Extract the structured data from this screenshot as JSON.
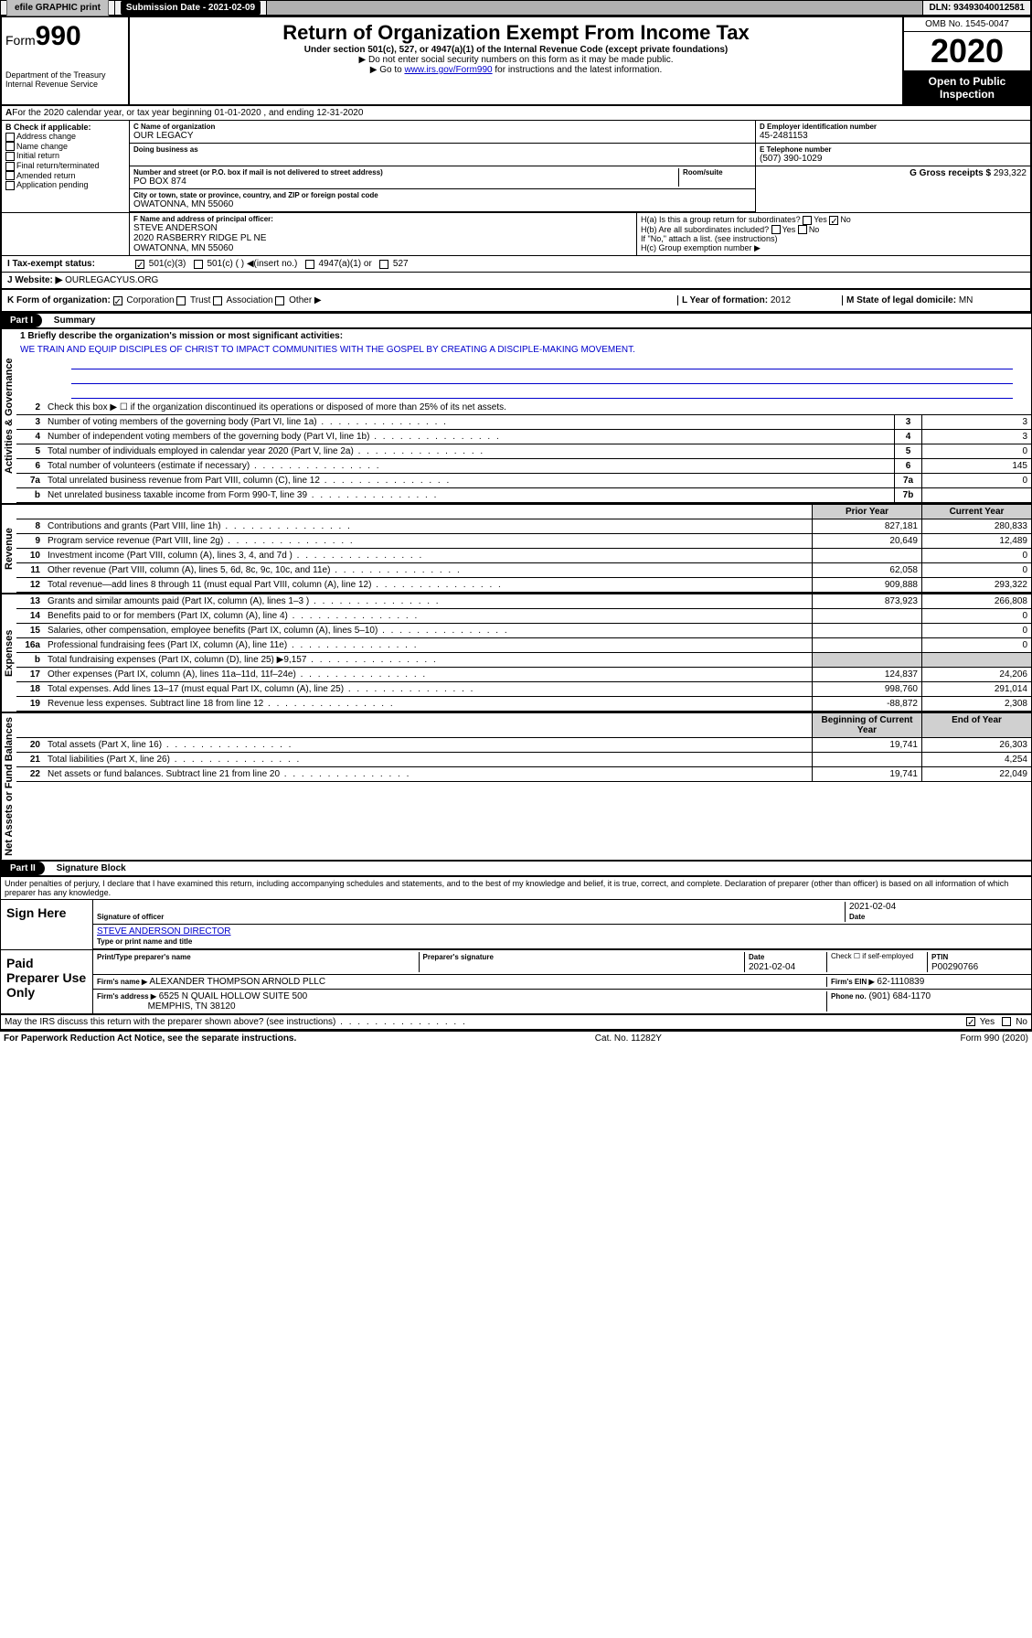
{
  "topbar": {
    "efile": "efile GRAPHIC print",
    "subdate_label": "Submission Date - 2021-02-09",
    "dln": "DLN: 93493040012581"
  },
  "header": {
    "form": "Form",
    "form_num": "990",
    "dept1": "Department of the Treasury",
    "dept2": "Internal Revenue Service",
    "title": "Return of Organization Exempt From Income Tax",
    "sub1": "Under section 501(c), 527, or 4947(a)(1) of the Internal Revenue Code (except private foundations)",
    "sub2": "▶ Do not enter social security numbers on this form as it may be made public.",
    "sub3a": "▶ Go to ",
    "sub3_link": "www.irs.gov/Form990",
    "sub3b": " for instructions and the latest information.",
    "omb": "OMB No. 1545-0047",
    "year": "2020",
    "open": "Open to Public Inspection"
  },
  "A": {
    "text": "For the 2020 calendar year, or tax year beginning 01-01-2020   , and ending 12-31-2020"
  },
  "B": {
    "label": "B Check if applicable:",
    "opts": [
      "Address change",
      "Name change",
      "Initial return",
      "Final return/terminated",
      "Amended return",
      "Application pending"
    ]
  },
  "C": {
    "name_label": "C Name of organization",
    "name": "OUR LEGACY",
    "dba_label": "Doing business as",
    "street_label": "Number and street (or P.O. box if mail is not delivered to street address)",
    "room_label": "Room/suite",
    "street": "PO BOX 874",
    "city_label": "City or town, state or province, country, and ZIP or foreign postal code",
    "city": "OWATONNA, MN  55060"
  },
  "D": {
    "label": "D Employer identification number",
    "val": "45-2481153"
  },
  "E": {
    "label": "E Telephone number",
    "val": "(507) 390-1029"
  },
  "G": {
    "label": "G Gross receipts $",
    "val": "293,322"
  },
  "F": {
    "label": "F  Name and address of principal officer:",
    "name": "STEVE ANDERSON",
    "addr1": "2020 RASBERRY RIDGE PL NE",
    "addr2": "OWATONNA, MN  55060"
  },
  "H": {
    "a": "H(a)  Is this a group return for subordinates?",
    "b": "H(b)  Are all subordinates included?",
    "b_note": "If \"No,\" attach a list. (see instructions)",
    "c": "H(c)  Group exemption number ▶",
    "yes": "Yes",
    "no": "No"
  },
  "I": {
    "label": "I  Tax-exempt status:",
    "o1": "501(c)(3)",
    "o2": "501(c) (  ) ◀(insert no.)",
    "o3": "4947(a)(1) or",
    "o4": "527"
  },
  "J": {
    "label": "J   Website: ▶",
    "val": "OURLEGACYUS.ORG"
  },
  "K": {
    "label": "K Form of organization:",
    "o1": "Corporation",
    "o2": "Trust",
    "o3": "Association",
    "o4": "Other ▶"
  },
  "L": {
    "label": "L Year of formation:",
    "val": "2012"
  },
  "M": {
    "label": "M State of legal domicile:",
    "val": "MN"
  },
  "part1": {
    "hdr": "Part I",
    "title": "Summary"
  },
  "summary": {
    "q1_label": "1  Briefly describe the organization's mission or most significant activities:",
    "q1_text": "WE TRAIN AND EQUIP DISCIPLES OF CHRIST TO IMPACT COMMUNITIES WITH THE GOSPEL BY CREATING A DISCIPLE-MAKING MOVEMENT.",
    "q2": "Check this box ▶ ☐  if the organization discontinued its operations or disposed of more than 25% of its net assets.",
    "rows_gov": [
      {
        "n": "3",
        "t": "Number of voting members of the governing body (Part VI, line 1a)",
        "box": "3",
        "v": "3"
      },
      {
        "n": "4",
        "t": "Number of independent voting members of the governing body (Part VI, line 1b)",
        "box": "4",
        "v": "3"
      },
      {
        "n": "5",
        "t": "Total number of individuals employed in calendar year 2020 (Part V, line 2a)",
        "box": "5",
        "v": "0"
      },
      {
        "n": "6",
        "t": "Total number of volunteers (estimate if necessary)",
        "box": "6",
        "v": "145"
      },
      {
        "n": "7a",
        "t": "Total unrelated business revenue from Part VIII, column (C), line 12",
        "box": "7a",
        "v": "0"
      },
      {
        "n": "b",
        "t": "Net unrelated business taxable income from Form 990-T, line 39",
        "box": "7b",
        "v": ""
      }
    ],
    "col_prior": "Prior Year",
    "col_current": "Current Year",
    "rows_rev": [
      {
        "n": "8",
        "t": "Contributions and grants (Part VIII, line 1h)",
        "p": "827,181",
        "c": "280,833"
      },
      {
        "n": "9",
        "t": "Program service revenue (Part VIII, line 2g)",
        "p": "20,649",
        "c": "12,489"
      },
      {
        "n": "10",
        "t": "Investment income (Part VIII, column (A), lines 3, 4, and 7d )",
        "p": "",
        "c": "0"
      },
      {
        "n": "11",
        "t": "Other revenue (Part VIII, column (A), lines 5, 6d, 8c, 9c, 10c, and 11e)",
        "p": "62,058",
        "c": "0"
      },
      {
        "n": "12",
        "t": "Total revenue—add lines 8 through 11 (must equal Part VIII, column (A), line 12)",
        "p": "909,888",
        "c": "293,322"
      }
    ],
    "rows_exp": [
      {
        "n": "13",
        "t": "Grants and similar amounts paid (Part IX, column (A), lines 1–3 )",
        "p": "873,923",
        "c": "266,808"
      },
      {
        "n": "14",
        "t": "Benefits paid to or for members (Part IX, column (A), line 4)",
        "p": "",
        "c": "0"
      },
      {
        "n": "15",
        "t": "Salaries, other compensation, employee benefits (Part IX, column (A), lines 5–10)",
        "p": "",
        "c": "0"
      },
      {
        "n": "16a",
        "t": "Professional fundraising fees (Part IX, column (A), line 11e)",
        "p": "",
        "c": "0"
      },
      {
        "n": "b",
        "t": "Total fundraising expenses (Part IX, column (D), line 25) ▶9,157",
        "p": "",
        "c": ""
      },
      {
        "n": "17",
        "t": "Other expenses (Part IX, column (A), lines 11a–11d, 11f–24e)",
        "p": "124,837",
        "c": "24,206"
      },
      {
        "n": "18",
        "t": "Total expenses. Add lines 13–17 (must equal Part IX, column (A), line 25)",
        "p": "998,760",
        "c": "291,014"
      },
      {
        "n": "19",
        "t": "Revenue less expenses. Subtract line 18 from line 12",
        "p": "-88,872",
        "c": "2,308"
      }
    ],
    "col_begin": "Beginning of Current Year",
    "col_end": "End of Year",
    "rows_net": [
      {
        "n": "20",
        "t": "Total assets (Part X, line 16)",
        "p": "19,741",
        "c": "26,303"
      },
      {
        "n": "21",
        "t": "Total liabilities (Part X, line 26)",
        "p": "",
        "c": "4,254"
      },
      {
        "n": "22",
        "t": "Net assets or fund balances. Subtract line 21 from line 20",
        "p": "19,741",
        "c": "22,049"
      }
    ],
    "vlabels": {
      "gov": "Activities & Governance",
      "rev": "Revenue",
      "exp": "Expenses",
      "net": "Net Assets or Fund Balances"
    }
  },
  "part2": {
    "hdr": "Part II",
    "title": "Signature Block"
  },
  "sig": {
    "perjury": "Under penalties of perjury, I declare that I have examined this return, including accompanying schedules and statements, and to the best of my knowledge and belief, it is true, correct, and complete. Declaration of preparer (other than officer) is based on all information of which preparer has any knowledge.",
    "sign_here": "Sign Here",
    "date1": "2021-02-04",
    "sig_officer": "Signature of officer",
    "date_label": "Date",
    "officer_name": "STEVE ANDERSON  DIRECTOR",
    "type_name": "Type or print name and title",
    "paid": "Paid Preparer Use Only",
    "prep_name_label": "Print/Type preparer's name",
    "prep_sig_label": "Preparer's signature",
    "prep_date_label": "Date",
    "prep_date": "2021-02-04",
    "check_if": "Check ☐ if self-employed",
    "ptin_label": "PTIN",
    "ptin": "P00290766",
    "firm_name_label": "Firm's name    ▶",
    "firm_name": "ALEXANDER THOMPSON ARNOLD PLLC",
    "firm_ein_label": "Firm's EIN ▶",
    "firm_ein": "62-1110839",
    "firm_addr_label": "Firm's address ▶",
    "firm_addr1": "6525 N QUAIL HOLLOW SUITE 500",
    "firm_addr2": "MEMPHIS, TN  38120",
    "phone_label": "Phone no.",
    "phone": "(901) 684-1170",
    "discuss": "May the IRS discuss this return with the preparer shown above? (see instructions)",
    "yes": "Yes",
    "no": "No"
  },
  "footer": {
    "pra": "For Paperwork Reduction Act Notice, see the separate instructions.",
    "cat": "Cat. No. 11282Y",
    "formref": "Form 990 (2020)"
  }
}
